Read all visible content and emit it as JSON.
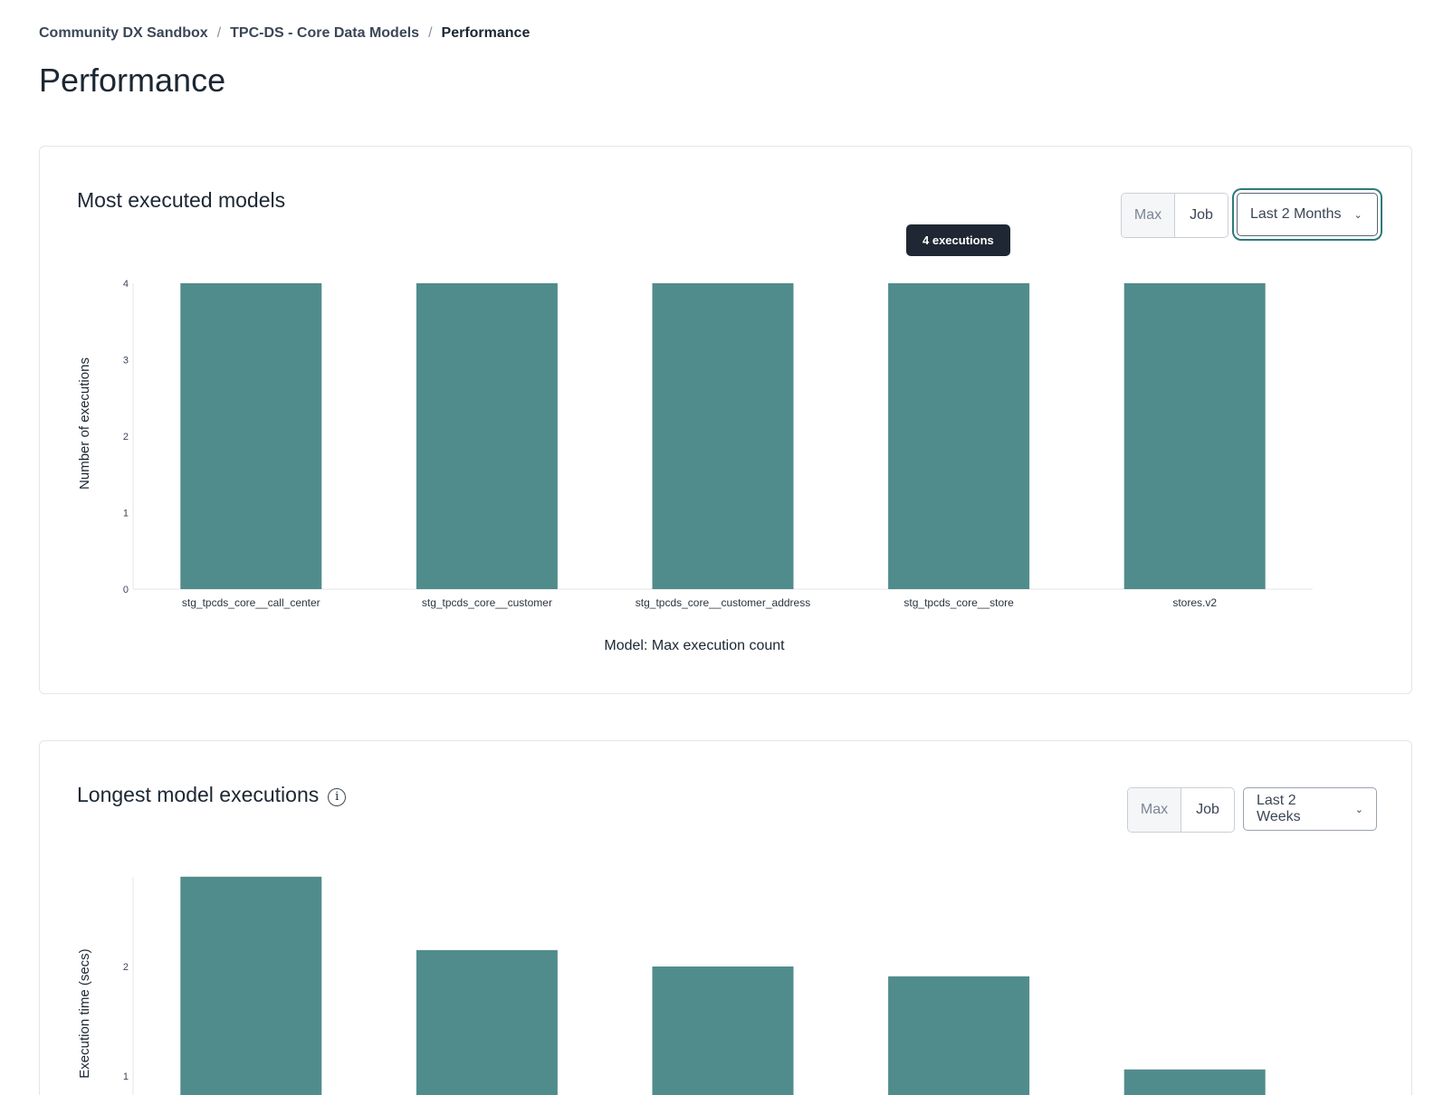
{
  "breadcrumb": [
    "Community DX Sandbox",
    "TPC-DS - Core Data Models",
    "Performance"
  ],
  "page_title": "Performance",
  "colors": {
    "bar": "#518c8c",
    "accent": "#2e7a7a"
  },
  "cards": [
    {
      "title": "Most executed models",
      "toggle": {
        "options": [
          "Max",
          "Job"
        ],
        "selected": "Job"
      },
      "range": "Last 2 Months",
      "tooltip": "4 executions"
    },
    {
      "title": "Longest model executions",
      "info_icon": "info-circle-icon",
      "toggle": {
        "options": [
          "Max",
          "Job"
        ],
        "selected": "Job"
      },
      "range": "Last 2 Weeks"
    }
  ],
  "chart_data": [
    {
      "type": "bar",
      "categories": [
        "stg_tpcds_core__call_center",
        "stg_tpcds_core__customer",
        "stg_tpcds_core__customer_address",
        "stg_tpcds_core__store",
        "stores.v2"
      ],
      "values": [
        4,
        4,
        4,
        4,
        4
      ],
      "xlabel": "Model: Max execution count",
      "ylabel": "Number of executions",
      "ylim": [
        0,
        4
      ],
      "yticks": [
        "0",
        "1",
        "2",
        "3",
        "4"
      ],
      "grid": false
    },
    {
      "type": "bar",
      "values": [
        2.82,
        2.15,
        2.0,
        1.91,
        1.06
      ],
      "ylabel": "Execution time (secs)",
      "yticks": [
        "1",
        "2"
      ],
      "grid": false
    }
  ]
}
